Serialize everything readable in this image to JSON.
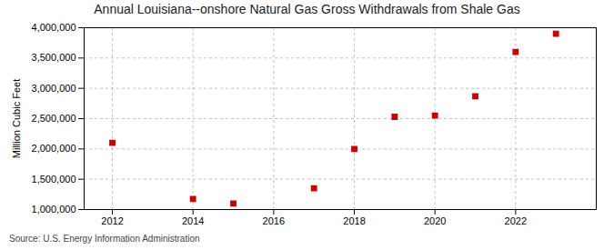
{
  "chart_data": {
    "type": "scatter",
    "title": "Annual Louisiana--onshore Natural Gas Gross Withdrawals from Shale Gas",
    "y_label": "Million Cubic Feet",
    "annotations": [
      "Source: U.S. Energy Information Administration"
    ],
    "x": [
      2012,
      2014,
      2015,
      2017,
      2018,
      2019,
      2020,
      2021,
      2022,
      2023
    ],
    "values": [
      2100000,
      1175000,
      1100000,
      1350000,
      2000000,
      2530000,
      2550000,
      2870000,
      3600000,
      3900000
    ],
    "color": "#cc0000",
    "marker": "square",
    "xlim": [
      2011.3,
      2024.0
    ],
    "ylim": [
      1000000,
      4000000
    ],
    "xticks": [
      2012,
      2014,
      2016,
      2018,
      2020,
      2022
    ],
    "yticks": [
      {
        "value": 1000000,
        "label": "1,000,000"
      },
      {
        "value": 1500000,
        "label": "1,500,000"
      },
      {
        "value": 2000000,
        "label": "2,000,000"
      },
      {
        "value": 2500000,
        "label": "2,500,000"
      },
      {
        "value": 3000000,
        "label": "3,000,000"
      },
      {
        "value": 3500000,
        "label": "3,500,000"
      },
      {
        "value": 4000000,
        "label": "4,000,000"
      }
    ],
    "grid": true
  }
}
